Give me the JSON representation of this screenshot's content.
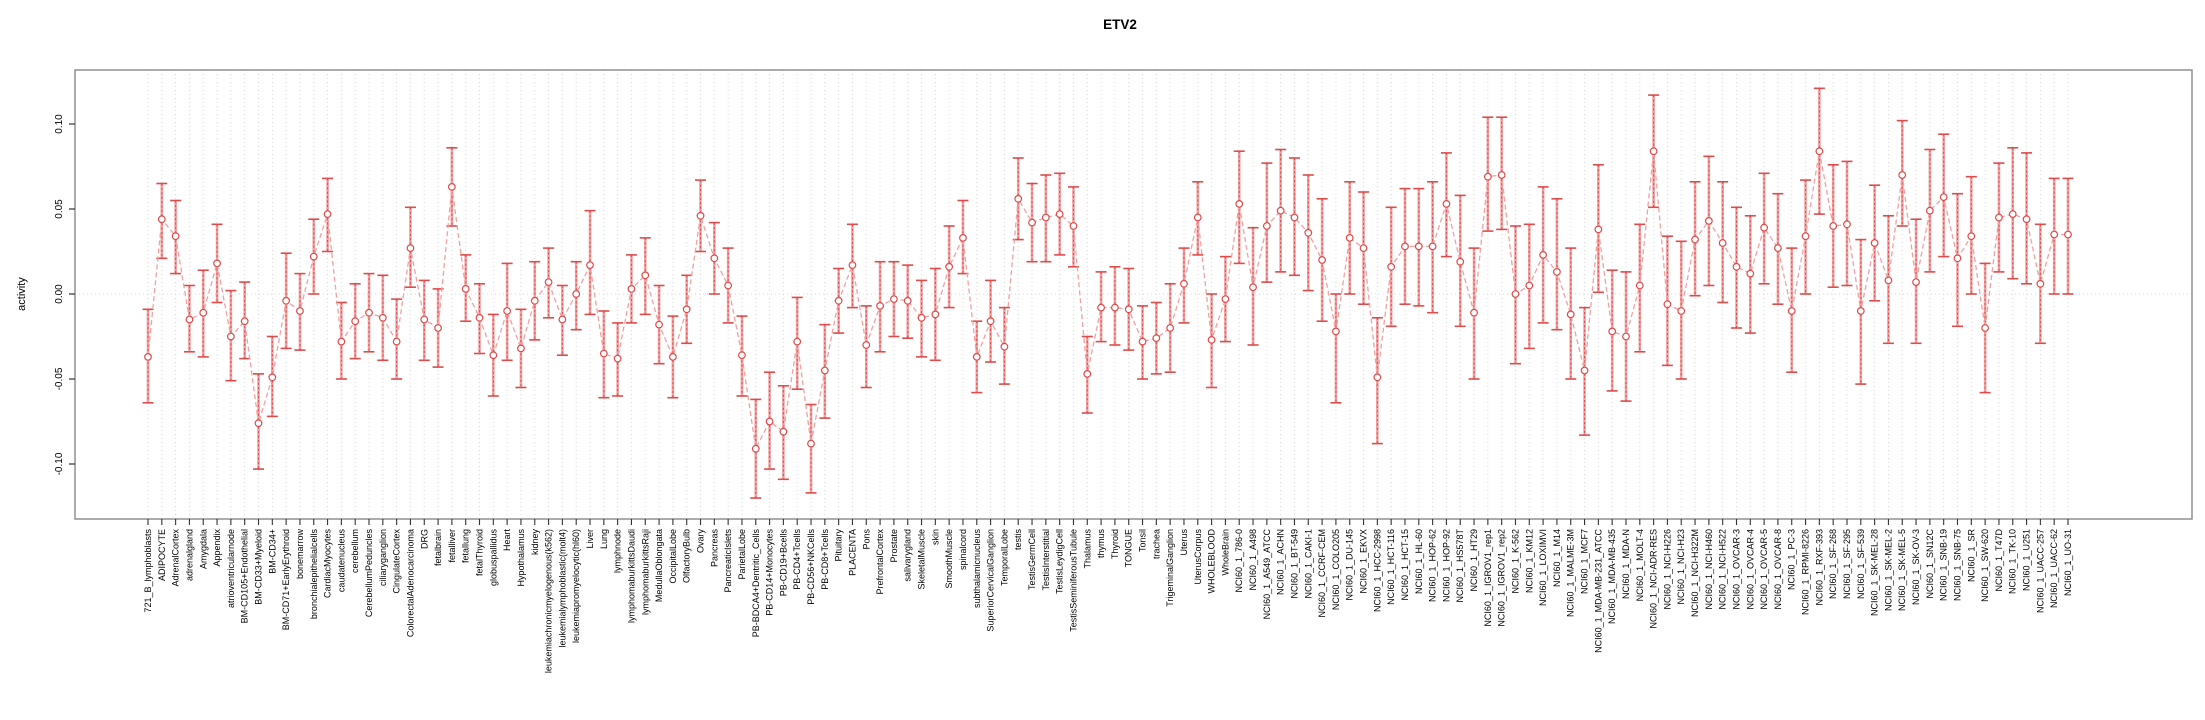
{
  "title": "ETV2",
  "chart_data": {
    "type": "line",
    "title": "ETV2",
    "xlabel": "",
    "ylabel": "activity",
    "ylim": [
      -0.132,
      0.132
    ],
    "yticks": [
      -0.1,
      -0.05,
      0.0,
      0.05,
      0.1
    ],
    "grid": "vertical dotted gridline at every category; horizontal dotted gridline at y=0",
    "legend_position": "none",
    "marker": "open-circle with error bars",
    "colors": {
      "marker": "#e04848",
      "error_bar_light": "#f2a0a0",
      "error_bar_dash": "#dd4b4b",
      "connector": "#f2a0a0",
      "gridline": "#d8d8d8",
      "axis_box": "#888888",
      "tick": "#333333",
      "text": "#000000"
    },
    "categories": [
      "721_B_lymphoblasts",
      "ADIPOCYTE",
      "AdrenalCortex",
      "adrenalgland",
      "Amygdala",
      "Appendix",
      "atrioventricularnode",
      "BM-CD105+Endothelial",
      "BM-CD33+Myeloid",
      "BM-CD34+",
      "BM-CD71+EarlyErythroid",
      "bonemarrow",
      "bronchialepithelialcells",
      "CardiacMyocytes",
      "caudatenucleus",
      "cerebellum",
      "CerebellumPeduncles",
      "ciliaryganglion",
      "CingulateCortex",
      "ColorectalAdenocarcinoma",
      "DRG",
      "fetalbrain",
      "fetalliver",
      "fetallung",
      "fetalThyroid",
      "globuspallidus",
      "Heart",
      "Hypothalamus",
      "kidney",
      "leukemiachronicmyelogenous(k562)",
      "leukemialymphoblastic(molt4)",
      "leukemiapromyelocytic(hl60)",
      "Liver",
      "Lung",
      "lymphnode",
      "lymphomaburkittsDaudi",
      "lymphomaburkittsRaji",
      "MedullaOblongata",
      "OccipitalLobe",
      "OlfactoryBulb",
      "Ovary",
      "Pancreas",
      "PancreaticIslets",
      "ParietalLobe",
      "PB-BDCA4+Dentritic_Cells",
      "PB-CD14+Monocytes",
      "PB-CD19+Bcells",
      "PB-CD4+Tcells",
      "PB-CD56+NKCells",
      "PB-CD8+Tcells",
      "Pituitary",
      "PLACENTA",
      "Pons",
      "PrefrontalCortex",
      "Prostate",
      "salivarygland",
      "SkeletalMuscle",
      "skin",
      "SmoothMuscle",
      "spinalcord",
      "subthalamicnucleus",
      "SuperiorCervicalGanglion",
      "TemporalLobe",
      "testis",
      "TestisGermCell",
      "TestisInterstitial",
      "TestisLeydigCell",
      "TestisSeminiferousTubule",
      "Thalamus",
      "thymus",
      "Thyroid",
      "TONGUE",
      "Tonsil",
      "trachea",
      "TrigeminalGanglion",
      "Uterus",
      "UterusCorpus",
      "WHOLEBLOOD",
      "WholeBrain",
      "NCI60_1_786-0",
      "NCI60_1_A498",
      "NCI60_1_A549_ATCC",
      "NCI60_1_ACHN",
      "NCI60_1_BT-549",
      "NCI60_1_CAKI-1",
      "NCI60_1_CCRF-CEM",
      "NCI60_1_COLO205",
      "NCI60_1_DU-145",
      "NCI60_1_EKVX",
      "NCI60_1_HCC-2998",
      "NCI60_1_HCT-116",
      "NCI60_1_HCT-15",
      "NCI60_1_HL-60",
      "NCI60_1_HOP-62",
      "NCI60_1_HOP-92",
      "NCI60_1_HS578T",
      "NCI60_1_HT29",
      "NCI60_1_IGROV1_rep1",
      "NCI60_1_IGROV1_rep2",
      "NCI60_1_K-562",
      "NCI60_1_KM12",
      "NCI60_1_LOXIMVI",
      "NCI60_1_M14",
      "NCI60_1_MALME-3M",
      "NCI60_1_MCF7",
      "NCI60_1_MDA-MB-231_ATCC",
      "NCI60_1_MDA-MB-435",
      "NCI60_1_MDA-N",
      "NCI60_1_MOLT-4",
      "NCI60_1_NCI-ADR-RES",
      "NCI60_1_NCI-H226",
      "NCI60_1_NCI-H23",
      "NCI60_1_NCI-H322M",
      "NCI60_1_NCI-H460",
      "NCI60_1_NCI-H522",
      "NCI60_1_OVCAR-3",
      "NCI60_1_OVCAR-4",
      "NCI60_1_OVCAR-5",
      "NCI60_1_OVCAR-8",
      "NCI60_1_PC-3",
      "NCI60_1_RPMI-8226",
      "NCI60_1_RXF-393",
      "NCI60_1_SF-268",
      "NCI60_1_SF-295",
      "NCI60_1_SF-539",
      "NCI60_1_SK-MEL-28",
      "NCI60_1_SK-MEL-2",
      "NCI60_1_SK-MEL-5",
      "NCI60_1_SK-OV-3",
      "NCI60_1_SN12C",
      "NCI60_1_SNB-19",
      "NCI60_1_SNB-75",
      "NCI60_1_SR",
      "NCI60_1_SW-620",
      "NCI60_1_T47D",
      "NCI60_1_TK-10",
      "NCI60_1_U251",
      "NCI60_1_UACC-257",
      "NCI60_1_UACC-62",
      "NCI60_1_UO-31"
    ],
    "series": [
      {
        "name": "activity",
        "values": [
          -0.037,
          0.044,
          0.034,
          -0.015,
          -0.011,
          0.018,
          -0.025,
          -0.016,
          -0.076,
          -0.049,
          -0.004,
          -0.01,
          0.022,
          0.047,
          -0.028,
          -0.016,
          -0.011,
          -0.014,
          -0.028,
          0.027,
          -0.015,
          -0.02,
          0.063,
          0.003,
          -0.014,
          -0.036,
          -0.01,
          -0.032,
          -0.004,
          0.007,
          -0.015,
          0.0,
          0.017,
          -0.035,
          -0.038,
          0.003,
          0.011,
          -0.018,
          -0.037,
          -0.009,
          0.046,
          0.021,
          0.005,
          -0.036,
          -0.091,
          -0.075,
          -0.081,
          -0.028,
          -0.088,
          -0.045,
          -0.004,
          0.017,
          -0.03,
          -0.007,
          -0.003,
          -0.004,
          -0.014,
          -0.012,
          0.016,
          0.033,
          -0.037,
          -0.016,
          -0.031,
          0.056,
          0.042,
          0.045,
          0.047,
          0.04,
          -0.047,
          -0.008,
          -0.008,
          -0.009,
          -0.028,
          -0.026,
          -0.02,
          0.006,
          0.045,
          -0.027,
          -0.003,
          0.053,
          0.004,
          0.04,
          0.049,
          0.045,
          0.036,
          0.02,
          -0.022,
          0.033,
          0.027,
          -0.049,
          0.016,
          0.028,
          0.028,
          0.028,
          0.053,
          0.019,
          -0.011,
          0.069,
          0.07,
          0.0,
          0.005,
          0.023,
          0.013,
          -0.012,
          -0.045,
          0.038,
          -0.022,
          -0.025,
          0.005,
          0.084,
          -0.006,
          -0.01,
          0.032,
          0.043,
          0.03,
          0.016,
          0.012,
          0.039,
          0.027,
          -0.01,
          0.034,
          0.084,
          0.04,
          0.041,
          -0.01,
          0.03,
          0.008,
          0.07,
          0.007,
          0.049,
          0.057,
          0.021,
          0.034,
          -0.02,
          0.045,
          0.047,
          0.044,
          0.006,
          0.035,
          0.035
        ],
        "err_lo": [
          -0.064,
          0.021,
          0.012,
          -0.034,
          -0.037,
          -0.005,
          -0.051,
          -0.038,
          -0.103,
          -0.072,
          -0.032,
          -0.033,
          0.0,
          0.025,
          -0.05,
          -0.038,
          -0.034,
          -0.039,
          -0.05,
          0.004,
          -0.039,
          -0.043,
          0.04,
          -0.016,
          -0.035,
          -0.06,
          -0.039,
          -0.055,
          -0.027,
          -0.014,
          -0.036,
          -0.021,
          -0.012,
          -0.061,
          -0.06,
          -0.017,
          -0.012,
          -0.041,
          -0.061,
          -0.029,
          0.025,
          0.0,
          -0.017,
          -0.06,
          -0.12,
          -0.103,
          -0.109,
          -0.056,
          -0.117,
          -0.073,
          -0.023,
          -0.008,
          -0.055,
          -0.034,
          -0.025,
          -0.026,
          -0.037,
          -0.039,
          -0.008,
          0.012,
          -0.058,
          -0.04,
          -0.053,
          0.032,
          0.019,
          0.019,
          0.023,
          0.016,
          -0.07,
          -0.028,
          -0.03,
          -0.033,
          -0.05,
          -0.047,
          -0.046,
          -0.017,
          0.023,
          -0.055,
          -0.028,
          0.018,
          -0.03,
          0.007,
          0.013,
          0.011,
          0.002,
          -0.016,
          -0.064,
          0.0,
          -0.006,
          -0.088,
          -0.019,
          -0.006,
          -0.007,
          -0.011,
          0.022,
          -0.019,
          -0.05,
          0.037,
          0.038,
          -0.041,
          -0.032,
          -0.017,
          -0.021,
          -0.05,
          -0.083,
          0.001,
          -0.057,
          -0.063,
          -0.034,
          0.051,
          -0.042,
          -0.05,
          -0.001,
          0.005,
          -0.005,
          -0.02,
          -0.023,
          0.006,
          -0.006,
          -0.046,
          0.0,
          0.047,
          0.004,
          0.005,
          -0.053,
          -0.004,
          -0.029,
          0.04,
          -0.029,
          0.013,
          0.022,
          -0.019,
          0.0,
          -0.058,
          0.013,
          0.009,
          0.006,
          -0.029,
          0.0,
          0.0
        ],
        "err_hi": [
          -0.009,
          0.065,
          0.055,
          0.005,
          0.014,
          0.041,
          0.002,
          0.007,
          -0.047,
          -0.025,
          0.024,
          0.012,
          0.044,
          0.068,
          -0.005,
          0.006,
          0.012,
          0.011,
          -0.003,
          0.051,
          0.008,
          0.003,
          0.086,
          0.023,
          0.006,
          -0.012,
          0.018,
          -0.009,
          0.019,
          0.027,
          0.005,
          0.019,
          0.049,
          -0.01,
          -0.017,
          0.023,
          0.033,
          0.005,
          -0.013,
          0.011,
          0.067,
          0.042,
          0.027,
          -0.013,
          -0.062,
          -0.046,
          -0.054,
          -0.002,
          -0.065,
          -0.018,
          0.015,
          0.041,
          -0.007,
          0.019,
          0.019,
          0.017,
          0.008,
          0.015,
          0.04,
          0.055,
          -0.016,
          0.008,
          -0.008,
          0.08,
          0.065,
          0.07,
          0.071,
          0.063,
          -0.025,
          0.013,
          0.016,
          0.015,
          -0.007,
          -0.005,
          0.006,
          0.027,
          0.066,
          0.0,
          0.022,
          0.084,
          0.039,
          0.077,
          0.085,
          0.08,
          0.07,
          0.056,
          0.0,
          0.066,
          0.06,
          -0.014,
          0.051,
          0.062,
          0.062,
          0.066,
          0.083,
          0.058,
          0.027,
          0.104,
          0.104,
          0.04,
          0.041,
          0.063,
          0.056,
          0.027,
          -0.008,
          0.076,
          0.014,
          0.013,
          0.041,
          0.117,
          0.034,
          0.031,
          0.066,
          0.081,
          0.066,
          0.051,
          0.046,
          0.071,
          0.059,
          0.027,
          0.067,
          0.121,
          0.076,
          0.078,
          0.032,
          0.064,
          0.046,
          0.102,
          0.044,
          0.085,
          0.094,
          0.059,
          0.069,
          0.018,
          0.077,
          0.086,
          0.083,
          0.041,
          0.068,
          0.068
        ]
      }
    ]
  }
}
